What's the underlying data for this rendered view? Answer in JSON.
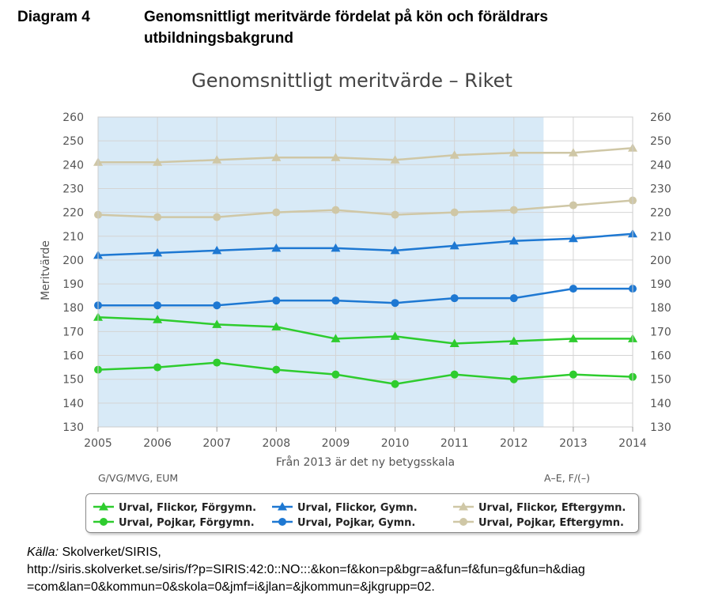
{
  "header": {
    "label": "Diagram 4",
    "title": "Genomsnittligt meritvärde fördelat på kön och föräldrars utbildningsbakgrund"
  },
  "chart_data": {
    "type": "line",
    "title": "Genomsnittligt meritvärde – Riket",
    "ylabel": "Meritvärde",
    "xlabel": "Från 2013 är det ny betygsskala",
    "x": [
      2005,
      2006,
      2007,
      2008,
      2009,
      2010,
      2011,
      2012,
      2013,
      2014
    ],
    "ylim": [
      130,
      260
    ],
    "yticks": [
      130,
      140,
      150,
      160,
      170,
      180,
      190,
      200,
      210,
      220,
      230,
      240,
      250,
      260
    ],
    "grid": true,
    "secondary_y_axis": true,
    "shaded_band": {
      "from": 2005,
      "to": 2012.5,
      "color": "#d8eaf7"
    },
    "band_labels": {
      "left": "G/VG/MVG, EUM",
      "right": "A–E, F/(–)"
    },
    "legend_position": "bottom",
    "series": [
      {
        "name": "Urval, Flickor, Förgymn.",
        "color": "#2ecc2e",
        "marker": "triangle",
        "values": [
          176,
          175,
          173,
          172,
          167,
          168,
          165,
          166,
          167,
          167
        ]
      },
      {
        "name": "Urval, Pojkar, Förgymn.",
        "color": "#2ecc2e",
        "marker": "circle",
        "values": [
          154,
          155,
          157,
          154,
          152,
          148,
          152,
          150,
          152,
          151
        ]
      },
      {
        "name": "Urval, Flickor, Gymn.",
        "color": "#1e78d2",
        "marker": "triangle",
        "values": [
          202,
          203,
          204,
          205,
          205,
          204,
          206,
          208,
          209,
          211
        ]
      },
      {
        "name": "Urval, Pojkar, Gymn.",
        "color": "#1e78d2",
        "marker": "circle",
        "values": [
          181,
          181,
          181,
          183,
          183,
          182,
          184,
          184,
          188,
          188
        ]
      },
      {
        "name": "Urval, Flickor, Eftergymn.",
        "color": "#cfc7a6",
        "marker": "triangle",
        "values": [
          241,
          241,
          242,
          243,
          243,
          242,
          244,
          245,
          245,
          247
        ]
      },
      {
        "name": "Urval, Pojkar, Eftergymn.",
        "color": "#cfc7a6",
        "marker": "circle",
        "values": [
          219,
          218,
          218,
          220,
          221,
          219,
          220,
          221,
          223,
          225
        ]
      }
    ]
  },
  "source": {
    "label": "Källa:",
    "text": " Skolverket/SIRIS,",
    "url_line1": "http://siris.skolverket.se/siris/f?p=SIRIS:42:0::NO:::&kon=f&kon=p&bgr=a&fun=f&fun=g&fun=h&diag",
    "url_line2": "=com&lan=0&kommun=0&skola=0&jmf=i&jlan=&jkommun=&jkgrupp=02."
  }
}
